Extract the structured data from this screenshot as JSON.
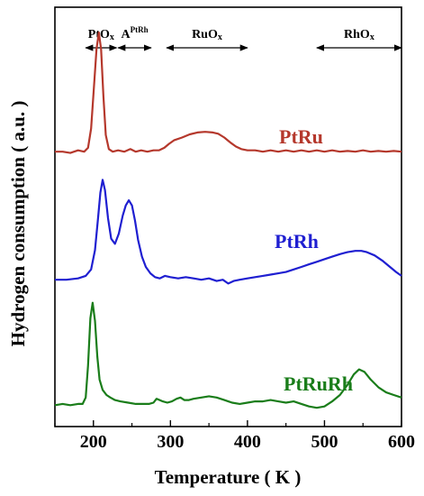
{
  "chart_data": {
    "type": "line",
    "title": "",
    "xlabel": "Temperature ( K )",
    "ylabel": "Hydrogen consumption ( a.u. )",
    "xlim": [
      150,
      600
    ],
    "xticks": [
      200,
      300,
      400,
      500,
      600
    ],
    "yticks_shown": false,
    "regions": [
      {
        "label": "PtOx",
        "main": "PtO",
        "sub": "x",
        "sup": "",
        "x_start": 190,
        "x_end": 230
      },
      {
        "label": "APtRh",
        "main": "A",
        "sub": "",
        "sup": "PtRh",
        "x_start": 232,
        "x_end": 275
      },
      {
        "label": "RuOx",
        "main": "RuO",
        "sub": "x",
        "sup": "",
        "x_start": 295,
        "x_end": 400
      },
      {
        "label": "RhOx",
        "main": "RhO",
        "sub": "x",
        "sup": "",
        "x_start": 490,
        "x_end": 600
      }
    ],
    "series": [
      {
        "name": "PtRu",
        "color": "#b5382c",
        "offset": 2.0,
        "points": [
          [
            150,
            0.02
          ],
          [
            160,
            0.02
          ],
          [
            170,
            0.01
          ],
          [
            180,
            0.03
          ],
          [
            188,
            0.02
          ],
          [
            193,
            0.05
          ],
          [
            197,
            0.2
          ],
          [
            201,
            0.55
          ],
          [
            204,
            0.82
          ],
          [
            207,
            0.95
          ],
          [
            210,
            0.82
          ],
          [
            213,
            0.45
          ],
          [
            216,
            0.15
          ],
          [
            220,
            0.04
          ],
          [
            225,
            0.02
          ],
          [
            232,
            0.03
          ],
          [
            240,
            0.02
          ],
          [
            248,
            0.04
          ],
          [
            255,
            0.02
          ],
          [
            262,
            0.03
          ],
          [
            270,
            0.02
          ],
          [
            278,
            0.03
          ],
          [
            285,
            0.03
          ],
          [
            292,
            0.05
          ],
          [
            298,
            0.08
          ],
          [
            305,
            0.11
          ],
          [
            315,
            0.13
          ],
          [
            325,
            0.155
          ],
          [
            335,
            0.17
          ],
          [
            345,
            0.175
          ],
          [
            355,
            0.17
          ],
          [
            362,
            0.16
          ],
          [
            370,
            0.13
          ],
          [
            378,
            0.09
          ],
          [
            385,
            0.06
          ],
          [
            392,
            0.04
          ],
          [
            400,
            0.03
          ],
          [
            410,
            0.03
          ],
          [
            420,
            0.02
          ],
          [
            430,
            0.03
          ],
          [
            440,
            0.02
          ],
          [
            450,
            0.03
          ],
          [
            460,
            0.02
          ],
          [
            470,
            0.03
          ],
          [
            480,
            0.02
          ],
          [
            490,
            0.03
          ],
          [
            500,
            0.02
          ],
          [
            510,
            0.03
          ],
          [
            520,
            0.02
          ],
          [
            530,
            0.025
          ],
          [
            540,
            0.02
          ],
          [
            550,
            0.03
          ],
          [
            560,
            0.02
          ],
          [
            570,
            0.025
          ],
          [
            580,
            0.02
          ],
          [
            590,
            0.025
          ],
          [
            600,
            0.02
          ]
        ]
      },
      {
        "name": "PtRh",
        "color": "#1f1fd1",
        "offset": 1.0,
        "points": [
          [
            150,
            0.02
          ],
          [
            165,
            0.02
          ],
          [
            180,
            0.03
          ],
          [
            190,
            0.05
          ],
          [
            197,
            0.1
          ],
          [
            202,
            0.25
          ],
          [
            206,
            0.5
          ],
          [
            209,
            0.7
          ],
          [
            212,
            0.8
          ],
          [
            215,
            0.72
          ],
          [
            219,
            0.5
          ],
          [
            223,
            0.34
          ],
          [
            228,
            0.3
          ],
          [
            233,
            0.38
          ],
          [
            238,
            0.52
          ],
          [
            242,
            0.6
          ],
          [
            246,
            0.64
          ],
          [
            250,
            0.6
          ],
          [
            254,
            0.48
          ],
          [
            258,
            0.33
          ],
          [
            263,
            0.2
          ],
          [
            268,
            0.12
          ],
          [
            274,
            0.07
          ],
          [
            280,
            0.04
          ],
          [
            286,
            0.03
          ],
          [
            293,
            0.05
          ],
          [
            300,
            0.04
          ],
          [
            310,
            0.03
          ],
          [
            320,
            0.04
          ],
          [
            330,
            0.03
          ],
          [
            340,
            0.02
          ],
          [
            350,
            0.03
          ],
          [
            360,
            0.01
          ],
          [
            368,
            0.02
          ],
          [
            375,
            -0.01
          ],
          [
            382,
            0.01
          ],
          [
            390,
            0.02
          ],
          [
            400,
            0.03
          ],
          [
            410,
            0.04
          ],
          [
            420,
            0.05
          ],
          [
            430,
            0.06
          ],
          [
            440,
            0.07
          ],
          [
            450,
            0.08
          ],
          [
            460,
            0.1
          ],
          [
            470,
            0.12
          ],
          [
            480,
            0.14
          ],
          [
            490,
            0.16
          ],
          [
            500,
            0.18
          ],
          [
            510,
            0.2
          ],
          [
            520,
            0.22
          ],
          [
            530,
            0.235
          ],
          [
            540,
            0.245
          ],
          [
            548,
            0.245
          ],
          [
            555,
            0.235
          ],
          [
            565,
            0.21
          ],
          [
            575,
            0.17
          ],
          [
            585,
            0.12
          ],
          [
            593,
            0.08
          ],
          [
            600,
            0.05
          ]
        ]
      },
      {
        "name": "PtRuRh",
        "color": "#1a7d1a",
        "offset": 0.0,
        "points": [
          [
            150,
            0.04
          ],
          [
            160,
            0.05
          ],
          [
            170,
            0.04
          ],
          [
            180,
            0.05
          ],
          [
            186,
            0.05
          ],
          [
            190,
            0.1
          ],
          [
            193,
            0.35
          ],
          [
            196,
            0.72
          ],
          [
            199,
            0.84
          ],
          [
            202,
            0.7
          ],
          [
            205,
            0.42
          ],
          [
            208,
            0.24
          ],
          [
            212,
            0.16
          ],
          [
            217,
            0.12
          ],
          [
            222,
            0.1
          ],
          [
            228,
            0.08
          ],
          [
            235,
            0.07
          ],
          [
            245,
            0.06
          ],
          [
            255,
            0.05
          ],
          [
            265,
            0.05
          ],
          [
            272,
            0.05
          ],
          [
            278,
            0.06
          ],
          [
            282,
            0.09
          ],
          [
            286,
            0.08
          ],
          [
            290,
            0.07
          ],
          [
            296,
            0.06
          ],
          [
            302,
            0.07
          ],
          [
            308,
            0.09
          ],
          [
            313,
            0.1
          ],
          [
            318,
            0.08
          ],
          [
            324,
            0.08
          ],
          [
            330,
            0.09
          ],
          [
            340,
            0.1
          ],
          [
            350,
            0.11
          ],
          [
            360,
            0.1
          ],
          [
            370,
            0.08
          ],
          [
            380,
            0.06
          ],
          [
            390,
            0.05
          ],
          [
            400,
            0.06
          ],
          [
            410,
            0.07
          ],
          [
            420,
            0.07
          ],
          [
            430,
            0.08
          ],
          [
            440,
            0.07
          ],
          [
            450,
            0.06
          ],
          [
            460,
            0.07
          ],
          [
            470,
            0.05
          ],
          [
            480,
            0.03
          ],
          [
            490,
            0.02
          ],
          [
            500,
            0.03
          ],
          [
            510,
            0.07
          ],
          [
            520,
            0.12
          ],
          [
            530,
            0.2
          ],
          [
            538,
            0.28
          ],
          [
            545,
            0.32
          ],
          [
            552,
            0.3
          ],
          [
            560,
            0.24
          ],
          [
            570,
            0.18
          ],
          [
            580,
            0.14
          ],
          [
            590,
            0.12
          ],
          [
            600,
            0.1
          ]
        ]
      }
    ]
  }
}
